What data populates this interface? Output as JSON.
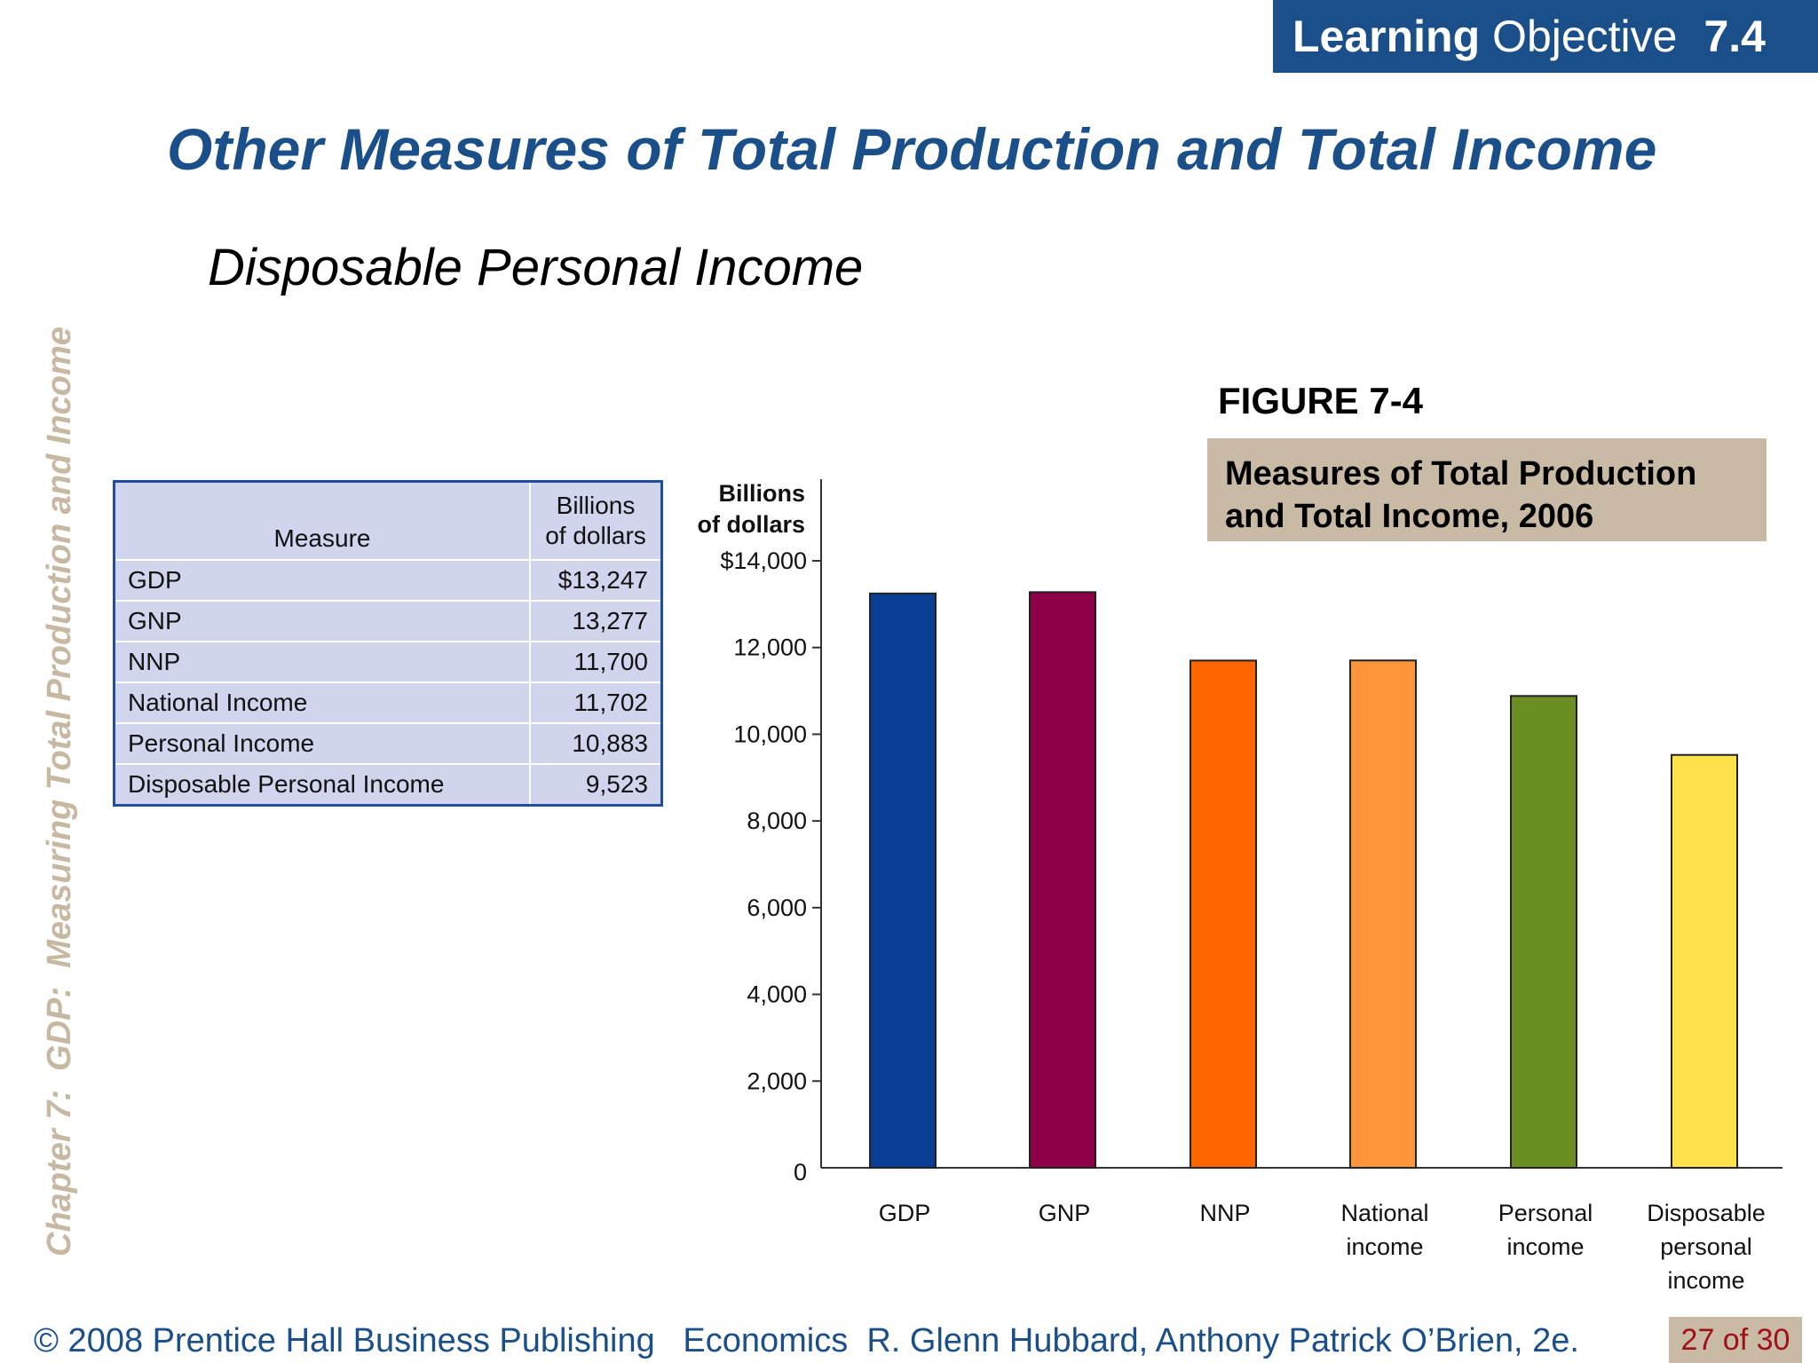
{
  "banner": {
    "bold": "Learning",
    "rest": "Objective",
    "number": "7.4"
  },
  "slide_title": "Other Measures of Total Production and Total Income",
  "subtitle": "Disposable Personal Income",
  "side_label": "Chapter 7:  GDP:  Measuring Total Production and Income",
  "figure": {
    "label": "FIGURE 7-4",
    "caption": "Measures of Total Production and Total Income, 2006"
  },
  "table": {
    "headers": [
      "Measure",
      "Billions of dollars"
    ],
    "rows": [
      [
        "GDP",
        "$13,247"
      ],
      [
        "GNP",
        "13,277"
      ],
      [
        "NNP",
        "11,700"
      ],
      [
        "National Income",
        "11,702"
      ],
      [
        "Personal Income",
        "10,883"
      ],
      [
        "Disposable Personal Income",
        "9,523"
      ]
    ]
  },
  "chart_data": {
    "type": "bar",
    "ylabel": [
      "Billions",
      "of dollars"
    ],
    "ylim": [
      0,
      14000
    ],
    "yticks": [
      "0",
      "2,000",
      "4,000",
      "6,000",
      "8,000",
      "10,000",
      "12,000",
      "$14,000"
    ],
    "categories": [
      [
        "GDP"
      ],
      [
        "GNP"
      ],
      [
        "NNP"
      ],
      [
        "National",
        "income"
      ],
      [
        "Personal",
        "income"
      ],
      [
        "Disposable",
        "personal",
        "income"
      ]
    ],
    "values": [
      13247,
      13277,
      11700,
      11702,
      10883,
      9523
    ],
    "colors": [
      "#0b3f95",
      "#8d0048",
      "#ff6600",
      "#ff963c",
      "#6b8e23",
      "#ffe14b"
    ]
  },
  "footer": {
    "text": "© 2008 Prentice Hall Business Publishing   Economics  R. Glenn Hubbard, Anthony Patrick O’Brien, 2e.",
    "page": "27 of 30"
  }
}
